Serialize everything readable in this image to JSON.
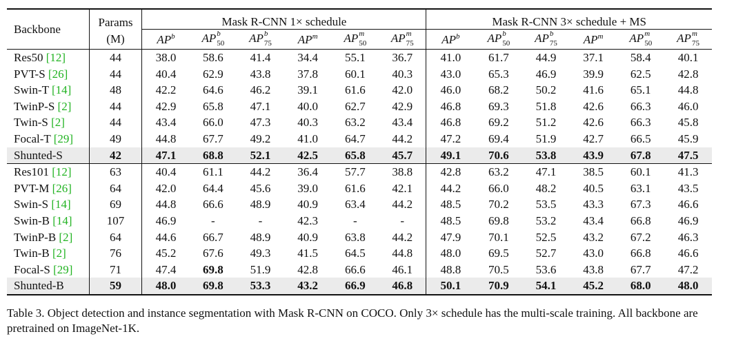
{
  "table": {
    "headers": {
      "backbone": "Backbone",
      "params_line1": "Params",
      "params_line2": "(M)",
      "group1": "Mask R-CNN 1× schedule",
      "group2": "Mask R-CNN 3× schedule + MS",
      "metrics": [
        {
          "base": "AP",
          "sup": "b",
          "sub": ""
        },
        {
          "base": "AP",
          "sup": "b",
          "sub": "50"
        },
        {
          "base": "AP",
          "sup": "b",
          "sub": "75"
        },
        {
          "base": "AP",
          "sup": "m",
          "sub": ""
        },
        {
          "base": "AP",
          "sup": "m",
          "sub": "50"
        },
        {
          "base": "AP",
          "sup": "m",
          "sub": "75"
        }
      ]
    },
    "groups": [
      {
        "rows": [
          {
            "name": "Res50",
            "cite": "[12]",
            "params": "44",
            "v": [
              "38.0",
              "58.6",
              "41.4",
              "34.4",
              "55.1",
              "36.7",
              "41.0",
              "61.7",
              "44.9",
              "37.1",
              "58.4",
              "40.1"
            ],
            "highlight": false
          },
          {
            "name": "PVT-S",
            "cite": "[26]",
            "params": "44",
            "v": [
              "40.4",
              "62.9",
              "43.8",
              "37.8",
              "60.1",
              "40.3",
              "43.0",
              "65.3",
              "46.9",
              "39.9",
              "62.5",
              "42.8"
            ],
            "highlight": false
          },
          {
            "name": "Swin-T",
            "cite": "[14]",
            "params": "48",
            "v": [
              "42.2",
              "64.6",
              "46.2",
              "39.1",
              "61.6",
              "42.0",
              "46.0",
              "68.2",
              "50.2",
              "41.6",
              "65.1",
              "44.8"
            ],
            "highlight": false
          },
          {
            "name": "TwinP-S",
            "cite": "[2]",
            "params": "44",
            "v": [
              "42.9",
              "65.8",
              "47.1",
              "40.0",
              "62.7",
              "42.9",
              "46.8",
              "69.3",
              "51.8",
              "42.6",
              "66.3",
              "46.0"
            ],
            "highlight": false
          },
          {
            "name": "Twin-S",
            "cite": "[2]",
            "params": "44",
            "v": [
              "43.4",
              "66.0",
              "47.3",
              "40.3",
              "63.2",
              "43.4",
              "46.8",
              "69.2",
              "51.2",
              "42.6",
              "66.3",
              "45.8"
            ],
            "highlight": false
          },
          {
            "name": "Focal-T",
            "cite": "[29]",
            "params": "49",
            "v": [
              "44.8",
              "67.7",
              "49.2",
              "41.0",
              "64.7",
              "44.2",
              "47.2",
              "69.4",
              "51.9",
              "42.7",
              "66.5",
              "45.9"
            ],
            "highlight": false
          },
          {
            "name": "Shunted-S",
            "cite": "",
            "params": "42",
            "v": [
              "47.1",
              "68.8",
              "52.1",
              "42.5",
              "65.8",
              "45.7",
              "49.1",
              "70.6",
              "53.8",
              "43.9",
              "67.8",
              "47.5"
            ],
            "highlight": true
          }
        ]
      },
      {
        "rows": [
          {
            "name": "Res101",
            "cite": "[12]",
            "params": "63",
            "v": [
              "40.4",
              "61.1",
              "44.2",
              "36.4",
              "57.7",
              "38.8",
              "42.8",
              "63.2",
              "47.1",
              "38.5",
              "60.1",
              "41.3"
            ],
            "highlight": false
          },
          {
            "name": "PVT-M",
            "cite": "[26]",
            "params": "64",
            "v": [
              "42.0",
              "64.4",
              "45.6",
              "39.0",
              "61.6",
              "42.1",
              "44.2",
              "66.0",
              "48.2",
              "40.5",
              "63.1",
              "43.5"
            ],
            "highlight": false
          },
          {
            "name": "Swin-S",
            "cite": "[14]",
            "params": "69",
            "v": [
              "44.8",
              "66.6",
              "48.9",
              "40.9",
              "63.4",
              "44.2",
              "48.5",
              "70.2",
              "53.5",
              "43.3",
              "67.3",
              "46.6"
            ],
            "highlight": false
          },
          {
            "name": "Swin-B",
            "cite": "[14]",
            "params": "107",
            "v": [
              "46.9",
              "-",
              "-",
              "42.3",
              "-",
              "-",
              "48.5",
              "69.8",
              "53.2",
              "43.4",
              "66.8",
              "46.9"
            ],
            "highlight": false
          },
          {
            "name": "TwinP-B",
            "cite": "[2]",
            "params": "64",
            "v": [
              "44.6",
              "66.7",
              "48.9",
              "40.9",
              "63.8",
              "44.2",
              "47.9",
              "70.1",
              "52.5",
              "43.2",
              "67.2",
              "46.3"
            ],
            "highlight": false
          },
          {
            "name": "Twin-B",
            "cite": "[2]",
            "params": "76",
            "v": [
              "45.2",
              "67.6",
              "49.3",
              "41.5",
              "64.5",
              "44.8",
              "48.0",
              "69.5",
              "52.7",
              "43.0",
              "66.8",
              "46.6"
            ],
            "highlight": false
          },
          {
            "name": "Focal-S",
            "cite": "[29]",
            "params": "71",
            "v": [
              "47.4",
              "69.8",
              "51.9",
              "42.8",
              "66.6",
              "46.1",
              "48.8",
              "70.5",
              "53.6",
              "43.8",
              "67.7",
              "47.2"
            ],
            "highlight": false,
            "bold_idx": [
              1
            ]
          },
          {
            "name": "Shunted-B",
            "cite": "",
            "params": "59",
            "v": [
              "48.0",
              "69.8",
              "53.3",
              "43.2",
              "66.9",
              "46.8",
              "50.1",
              "70.9",
              "54.1",
              "45.2",
              "68.0",
              "48.0"
            ],
            "highlight": true
          }
        ]
      }
    ]
  },
  "caption": "Table 3. Object detection and instance segmentation with Mask R-CNN on COCO. Only 3× schedule has the multi-scale training. All backbone are pretrained on ImageNet-1K."
}
